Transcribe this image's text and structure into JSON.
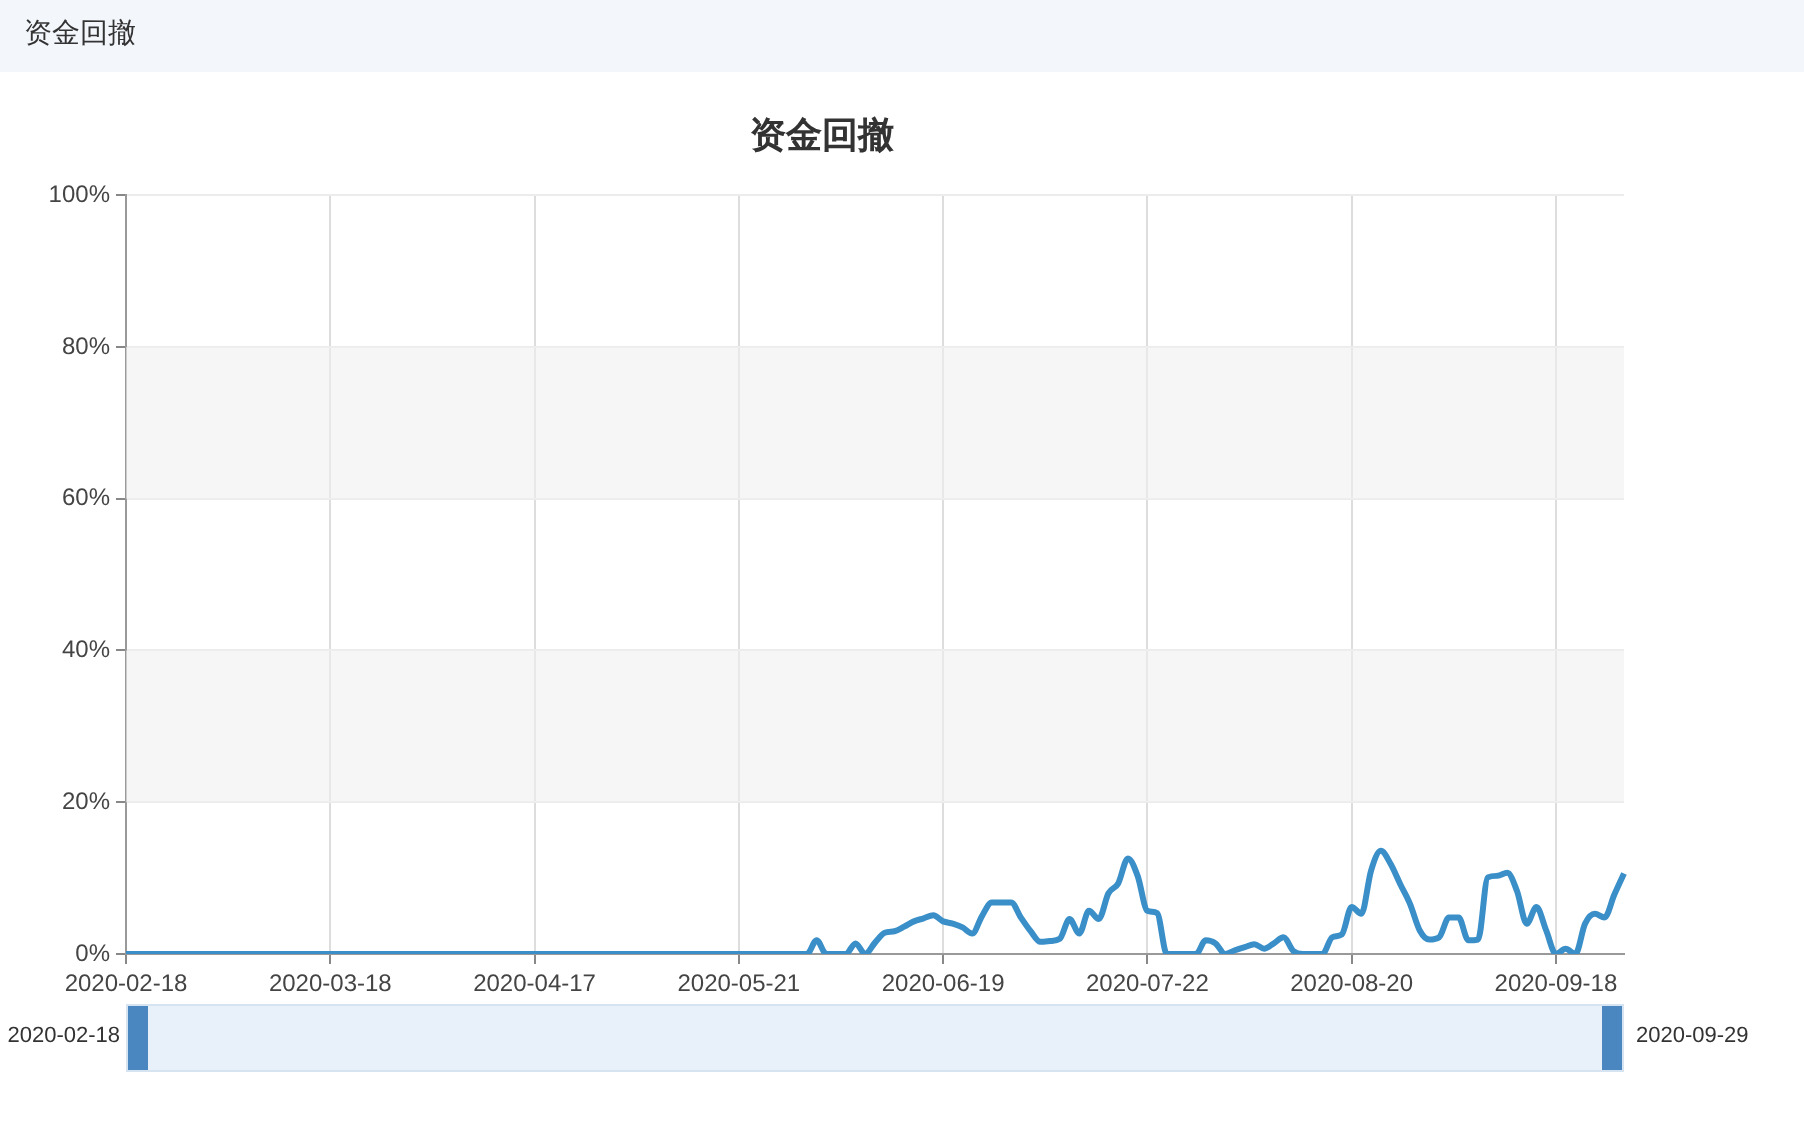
{
  "chart_data": {
    "type": "line",
    "title": "资金回撤",
    "annotations": [
      "资金回撤",
      "2020-02-18",
      "2020-09-29"
    ],
    "categories": [
      "2020-02-18",
      null,
      null,
      null,
      null,
      null,
      null,
      null,
      null,
      null,
      null,
      null,
      null,
      null,
      null,
      null,
      null,
      null,
      null,
      null,
      null,
      "2020-03-18",
      null,
      null,
      null,
      null,
      null,
      null,
      null,
      null,
      null,
      null,
      null,
      null,
      null,
      null,
      null,
      null,
      null,
      null,
      null,
      null,
      "2020-04-17",
      null,
      null,
      null,
      null,
      null,
      null,
      null,
      null,
      null,
      null,
      null,
      null,
      null,
      null,
      null,
      null,
      null,
      null,
      null,
      null,
      "2020-05-21",
      null,
      null,
      null,
      null,
      null,
      null,
      null,
      null,
      null,
      null,
      null,
      null,
      null,
      null,
      null,
      null,
      null,
      null,
      null,
      null,
      "2020-06-19",
      null,
      null,
      null,
      null,
      null,
      null,
      null,
      null,
      null,
      null,
      null,
      null,
      null,
      null,
      null,
      null,
      null,
      null,
      null,
      null,
      "2020-07-22",
      null,
      null,
      null,
      null,
      null,
      null,
      null,
      null,
      null,
      null,
      null,
      null,
      null,
      null,
      null,
      null,
      null,
      null,
      null,
      null,
      "2020-08-20",
      null,
      null,
      null,
      null,
      null,
      null,
      null,
      null,
      null,
      null,
      null,
      null,
      null,
      null,
      null,
      null,
      null,
      null,
      null,
      null,
      "2020-09-18",
      null,
      null,
      null,
      null,
      null,
      null,
      null
    ],
    "values": [
      0,
      0,
      0,
      0,
      0,
      0,
      0,
      0,
      0,
      0,
      0,
      0,
      0,
      0,
      0,
      0,
      0,
      0,
      0,
      0,
      0,
      0,
      0,
      0,
      0,
      0,
      0,
      0,
      0,
      0,
      0,
      0,
      0,
      0,
      0,
      0,
      0,
      0,
      0,
      0,
      0,
      0,
      0,
      0,
      0,
      0,
      0,
      0,
      0,
      0,
      0,
      0,
      0,
      0,
      0,
      0,
      0,
      0,
      0,
      0,
      0,
      0,
      0,
      0,
      0,
      0,
      0,
      0,
      0,
      0,
      0,
      1.8,
      0,
      0,
      0,
      1.4,
      0,
      1.5,
      2.8,
      3.0,
      3.6,
      4.3,
      4.7,
      5.1,
      4.3,
      4.0,
      3.5,
      2.7,
      5.0,
      6.8,
      6.8,
      6.8,
      4.8,
      3.0,
      1.6,
      1.7,
      2.0,
      4.6,
      2.7,
      5.7,
      4.6,
      8.0,
      9.3,
      12.6,
      10.3,
      5.7,
      5.4,
      0,
      0,
      0,
      0,
      1.8,
      1.4,
      0,
      0.5,
      0.9,
      1.3,
      0.7,
      1.4,
      2.2,
      0.4,
      0,
      0,
      0,
      2.2,
      2.6,
      6.2,
      5.3,
      11,
      13.6,
      11.9,
      9.2,
      6.6,
      3.1,
      1.9,
      2.2,
      4.8,
      4.8,
      1.8,
      1.9,
      10.1,
      10.3,
      10.7,
      8.3,
      4.0,
      6.2,
      3.1,
      0,
      0.7,
      0,
      4.0,
      5.3,
      4.8,
      7.8,
      10.6
    ],
    "color": "#3a8fc8",
    "marker": "none",
    "line_style": "solid",
    "ylim": [
      0,
      100
    ],
    "yticks": [
      {
        "value": 0,
        "label": "0%"
      },
      {
        "value": 20,
        "label": "20%"
      },
      {
        "value": 40,
        "label": "40%"
      },
      {
        "value": 60,
        "label": "60%"
      },
      {
        "value": 80,
        "label": "80%"
      },
      {
        "value": 100,
        "label": "100%"
      }
    ],
    "grid": true
  }
}
